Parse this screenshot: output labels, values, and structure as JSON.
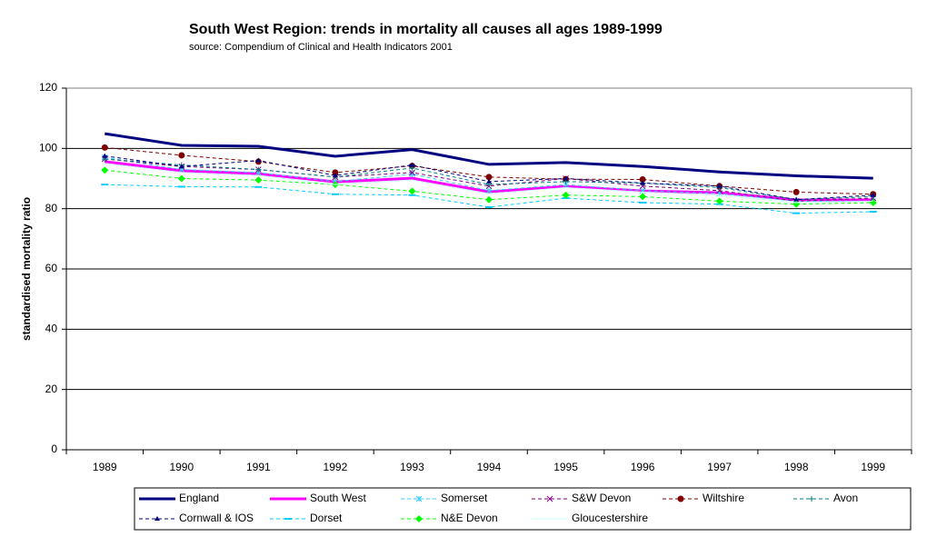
{
  "chart_data": {
    "type": "line",
    "title": "South West Region:  trends in mortality  all causes all ages 1989-1999",
    "subtitle": "source: Compendium of Clinical and Health Indicators  2001",
    "y_label": "standardised mortality ratio",
    "categories": [
      "1989",
      "1990",
      "1991",
      "1992",
      "1993",
      "1994",
      "1995",
      "1996",
      "1997",
      "1998",
      "1999"
    ],
    "ylim": [
      0,
      120
    ],
    "yticks": [
      0,
      20,
      40,
      60,
      80,
      100,
      120
    ],
    "grid": true,
    "legend": "bottom",
    "series": [
      {
        "name": "England",
        "color": "#000080",
        "style": "solid",
        "width": 3,
        "marker": "none",
        "values": [
          104.9,
          101,
          100.7,
          97.4,
          99.6,
          94.7,
          95.3,
          94,
          92.2,
          90.9,
          90.1
        ]
      },
      {
        "name": "South West",
        "color": "#ff00ff",
        "style": "solid",
        "width": 3,
        "marker": "none",
        "values": [
          95.6,
          92.6,
          91.6,
          88.9,
          90.1,
          85.6,
          87.4,
          85.9,
          85.3,
          82.9,
          82.9
        ]
      },
      {
        "name": "Somerset",
        "color": "#33ccff",
        "style": "dashed",
        "width": 1,
        "marker": "star",
        "values": [
          97,
          93,
          92,
          89,
          91.5,
          86,
          88,
          86,
          85,
          82.5,
          82.5
        ]
      },
      {
        "name": "S&W Devon",
        "color": "#800080",
        "style": "dashed",
        "width": 1,
        "marker": "cross",
        "values": [
          96.5,
          94,
          93,
          90.5,
          92,
          87.5,
          90,
          87.5,
          86,
          82.5,
          83.5
        ]
      },
      {
        "name": "Wiltshire",
        "color": "#800000",
        "style": "dashed",
        "width": 1,
        "marker": "circle",
        "values": [
          100.3,
          97.7,
          95.6,
          92,
          94.2,
          90.5,
          89.8,
          89.7,
          87.5,
          85.5,
          84.8
        ]
      },
      {
        "name": "Avon",
        "color": "#008080",
        "style": "dashed",
        "width": 1,
        "marker": "plus",
        "values": [
          96.5,
          94.5,
          93,
          90.5,
          93.5,
          88,
          89,
          88.5,
          87,
          83,
          84
        ]
      },
      {
        "name": "Cornwall & IOS",
        "color": "#000080",
        "style": "dashed",
        "width": 1,
        "marker": "triangle",
        "values": [
          97.5,
          94,
          96,
          91,
          94.5,
          89,
          90,
          88.5,
          87.5,
          83,
          84.5
        ]
      },
      {
        "name": "Dorset",
        "color": "#00ccff",
        "style": "dashed",
        "width": 1,
        "marker": "dash",
        "values": [
          88,
          87.3,
          87.2,
          84.8,
          84.5,
          80.5,
          83.5,
          82,
          81.5,
          78.5,
          79
        ]
      },
      {
        "name": "N&E Devon",
        "color": "#00ff00",
        "style": "dashed",
        "width": 1,
        "marker": "diamond",
        "values": [
          92.8,
          90,
          89.5,
          88,
          85.8,
          83,
          84.5,
          84,
          82.5,
          81.5,
          82
        ]
      },
      {
        "name": "Gloucestershire",
        "color": "#ccffff",
        "style": "solid",
        "width": 1,
        "marker": "none",
        "values": [
          95,
          92,
          91,
          88,
          89.5,
          85,
          87,
          85.5,
          84.5,
          82,
          82.5
        ]
      }
    ]
  }
}
